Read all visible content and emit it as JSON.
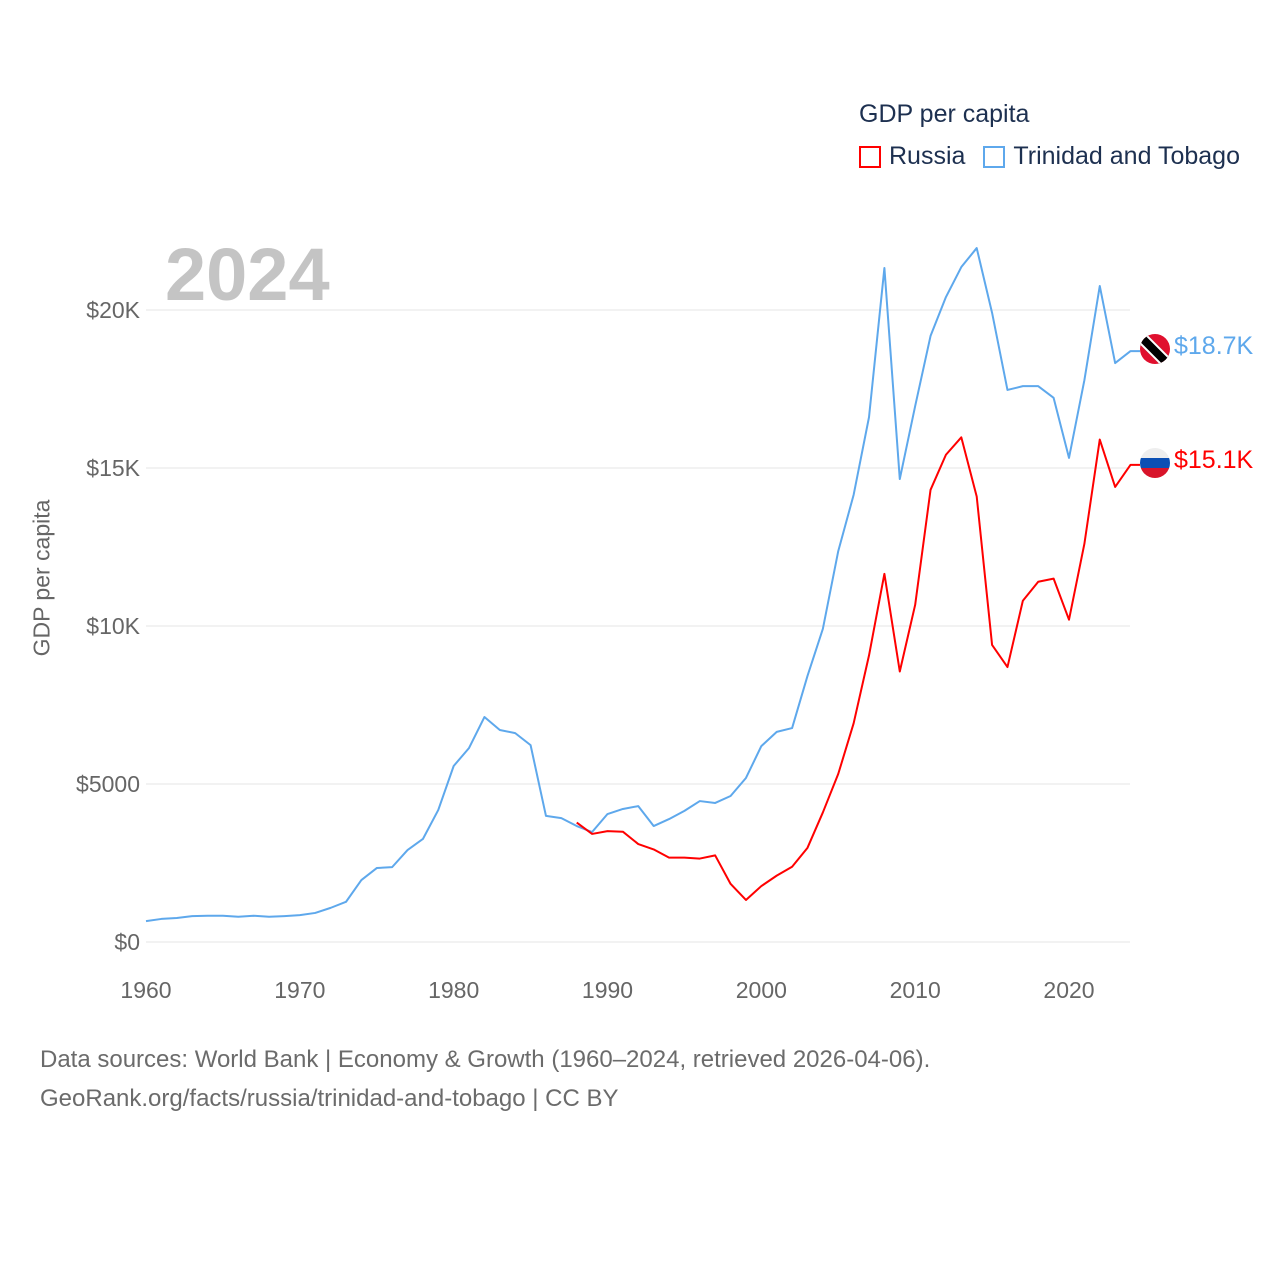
{
  "chart_data": {
    "type": "line",
    "title": "GDP per capita",
    "ylabel": "GDP per capita",
    "xlabel": "",
    "current_year": "2024",
    "xlim": [
      1960,
      2024
    ],
    "ylim": [
      0,
      22000
    ],
    "grid": true,
    "legend_position": "top-right",
    "yticks": [
      {
        "v": 0,
        "label": "$0"
      },
      {
        "v": 5000,
        "label": "$5000"
      },
      {
        "v": 10000,
        "label": "$10K"
      },
      {
        "v": 15000,
        "label": "$15K"
      },
      {
        "v": 20000,
        "label": "$20K"
      }
    ],
    "xticks": [
      {
        "v": 1960,
        "label": "1960"
      },
      {
        "v": 1970,
        "label": "1970"
      },
      {
        "v": 1980,
        "label": "1980"
      },
      {
        "v": 1990,
        "label": "1990"
      },
      {
        "v": 2000,
        "label": "2000"
      },
      {
        "v": 2010,
        "label": "2010"
      },
      {
        "v": 2020,
        "label": "2020"
      }
    ],
    "series": [
      {
        "name": "Russia",
        "color": "#ff0000",
        "end_label": "$15.1K",
        "flag": "russia-flag",
        "x": [
          1988,
          1989,
          1990,
          1991,
          1992,
          1993,
          1994,
          1995,
          1996,
          1997,
          1998,
          1999,
          2000,
          2001,
          2002,
          2003,
          2004,
          2005,
          2006,
          2007,
          2008,
          2009,
          2010,
          2011,
          2012,
          2013,
          2014,
          2015,
          2016,
          2017,
          2018,
          2019,
          2020,
          2021,
          2022,
          2023,
          2024
        ],
        "values": [
          3780,
          3420,
          3510,
          3490,
          3100,
          2930,
          2670,
          2670,
          2640,
          2740,
          1840,
          1330,
          1770,
          2100,
          2380,
          2980,
          4100,
          5320,
          6920,
          9070,
          11650,
          8560,
          10670,
          14310,
          15420,
          15970,
          14100,
          9400,
          8700,
          10800,
          11400,
          11500,
          10200,
          12600,
          15900,
          14400,
          15100
        ]
      },
      {
        "name": "Trinidad and Tobago",
        "color": "#5ea8ec",
        "end_label": "$18.7K",
        "flag": "trinidad-and-tobago-flag",
        "x": [
          1960,
          1961,
          1962,
          1963,
          1964,
          1965,
          1966,
          1967,
          1968,
          1969,
          1970,
          1971,
          1972,
          1973,
          1974,
          1975,
          1976,
          1977,
          1978,
          1979,
          1980,
          1981,
          1982,
          1983,
          1984,
          1985,
          1986,
          1987,
          1988,
          1989,
          1990,
          1991,
          1992,
          1993,
          1994,
          1995,
          1996,
          1997,
          1998,
          1999,
          2000,
          2001,
          2002,
          2003,
          2004,
          2005,
          2006,
          2007,
          2008,
          2009,
          2010,
          2011,
          2012,
          2013,
          2014,
          2015,
          2016,
          2017,
          2018,
          2019,
          2020,
          2021,
          2022,
          2023,
          2024
        ],
        "values": [
          660,
          730,
          760,
          820,
          830,
          830,
          800,
          830,
          800,
          820,
          850,
          920,
          1080,
          1270,
          1960,
          2340,
          2370,
          2910,
          3260,
          4180,
          5570,
          6140,
          7120,
          6710,
          6610,
          6230,
          3990,
          3920,
          3670,
          3480,
          4050,
          4210,
          4300,
          3670,
          3890,
          4150,
          4460,
          4400,
          4620,
          5190,
          6200,
          6650,
          6770,
          8420,
          9910,
          12370,
          14150,
          16610,
          21330,
          14650,
          16960,
          19180,
          20410,
          21360,
          21960,
          19910,
          17470,
          17590,
          17590,
          17220,
          15320,
          17780,
          20760,
          18320,
          18700
        ]
      }
    ]
  },
  "footer": {
    "line1": "Data sources: World Bank | Economy & Growth (1960–2024, retrieved 2026-04-06).",
    "line2": "GeoRank.org/facts/russia/trinidad-and-tobago | CC BY"
  }
}
